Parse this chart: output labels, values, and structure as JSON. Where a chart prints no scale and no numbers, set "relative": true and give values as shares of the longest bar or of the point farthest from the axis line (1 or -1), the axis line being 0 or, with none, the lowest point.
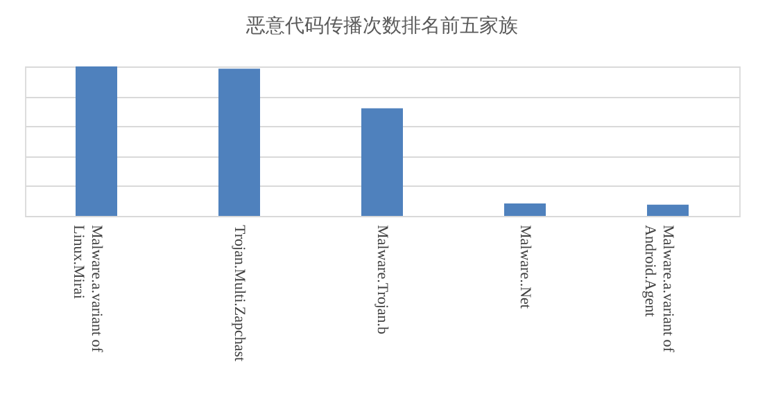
{
  "chart_data": {
    "type": "bar",
    "title": "恶意代码传播次数排名前五家族",
    "categories": [
      "Malware.a.variant of Linux.Mirai",
      "Trojan.Multi.Zapchast",
      "Malware.Trojan.b",
      "Malware..Net",
      "Malware.a.variant of Android.Agent"
    ],
    "values": [
      1,
      0.985,
      0.72,
      0.083,
      0.075
    ],
    "color": "#4f81bd",
    "relative": true,
    "grid": "y"
  }
}
